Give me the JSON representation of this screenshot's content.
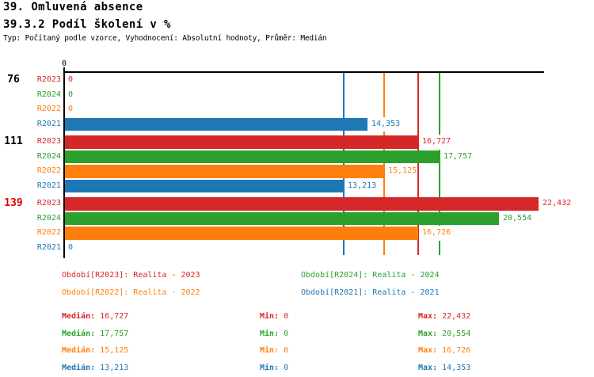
{
  "title": "39. Omluvená absence",
  "subtitle": "39.3.2 Podíl školení v %",
  "meta": "Typ: Počítaný podle vzorce, Vyhodnocení: Absolutní hodnoty, Průměr: Medián",
  "colors": {
    "R2023": "#d62728",
    "R2024": "#2ca02c",
    "R2022": "#ff7f0e",
    "R2021": "#1f77b4",
    "axis": "#000000",
    "alert_group_label": "#e60000"
  },
  "chart_data": {
    "type": "bar",
    "orientation": "horizontal",
    "x_axis": {
      "min": 0,
      "tick_labels": [
        "0"
      ],
      "grid": false
    },
    "groups": [
      {
        "label": "76",
        "label_color": "#000000",
        "rows": [
          {
            "series": "R2023",
            "value": 0,
            "value_label": "0"
          },
          {
            "series": "R2024",
            "value": 0,
            "value_label": "0"
          },
          {
            "series": "R2022",
            "value": 0,
            "value_label": "0"
          },
          {
            "series": "R2021",
            "value": 14353,
            "value_label": "14,353"
          }
        ]
      },
      {
        "label": "111",
        "label_color": "#000000",
        "rows": [
          {
            "series": "R2023",
            "value": 16727,
            "value_label": "16,727"
          },
          {
            "series": "R2024",
            "value": 17757,
            "value_label": "17,757"
          },
          {
            "series": "R2022",
            "value": 15125,
            "value_label": "15,125"
          },
          {
            "series": "R2021",
            "value": 13213,
            "value_label": "13,213"
          }
        ]
      },
      {
        "label": "139",
        "label_color": "#e60000",
        "rows": [
          {
            "series": "R2023",
            "value": 22432,
            "value_label": "22,432"
          },
          {
            "series": "R2024",
            "value": 20554,
            "value_label": "20,554"
          },
          {
            "series": "R2022",
            "value": 16726,
            "value_label": "16,726"
          },
          {
            "series": "R2021",
            "value": 0,
            "value_label": "0"
          }
        ]
      }
    ],
    "median_lines": [
      {
        "series": "R2021",
        "value": 13213
      },
      {
        "series": "R2022",
        "value": 15125
      },
      {
        "series": "R2023",
        "value": 16727
      },
      {
        "series": "R2024",
        "value": 17757
      }
    ]
  },
  "legend": {
    "items": [
      {
        "series": "R2023",
        "text": "Období[R2023]: Realita - 2023"
      },
      {
        "series": "R2024",
        "text": "Období[R2024]: Realita - 2024"
      },
      {
        "series": "R2022",
        "text": "Období[R2022]: Realita - 2022"
      },
      {
        "series": "R2021",
        "text": "Období[R2021]: Realita - 2021"
      }
    ]
  },
  "stats": {
    "rows": [
      {
        "series": "R2023",
        "median_label": "Medián:",
        "median": "16,727",
        "min_label": "Min:",
        "min": "0",
        "max_label": "Max:",
        "max": "22,432"
      },
      {
        "series": "R2024",
        "median_label": "Medián:",
        "median": "17,757",
        "min_label": "Min:",
        "min": "0",
        "max_label": "Max:",
        "max": "20,554"
      },
      {
        "series": "R2022",
        "median_label": "Medián:",
        "median": "15,125",
        "min_label": "Min:",
        "min": "0",
        "max_label": "Max:",
        "max": "16,726"
      },
      {
        "series": "R2021",
        "median_label": "Medián:",
        "median": "13,213",
        "min_label": "Min:",
        "min": "0",
        "max_label": "Max:",
        "max": "14,353"
      }
    ]
  }
}
